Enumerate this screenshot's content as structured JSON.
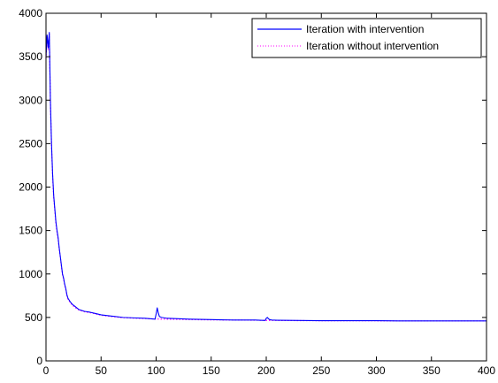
{
  "chart_data": {
    "type": "line",
    "title": "",
    "xlabel": "",
    "ylabel": "",
    "xlim": [
      0,
      400
    ],
    "ylim": [
      0,
      4000
    ],
    "xticks": [
      0,
      50,
      100,
      150,
      200,
      250,
      300,
      350,
      400
    ],
    "yticks": [
      0,
      500,
      1000,
      1500,
      2000,
      2500,
      3000,
      3500,
      4000
    ],
    "grid": false,
    "legend_position": "top-right",
    "series": [
      {
        "name": "Iteration with intervention",
        "color": "#0000ff",
        "style": "solid",
        "x": [
          0,
          1,
          2,
          3,
          4,
          5,
          6,
          7,
          8,
          9,
          10,
          11,
          12,
          13,
          14,
          15,
          16,
          17,
          18,
          19,
          20,
          22,
          24,
          26,
          28,
          30,
          35,
          40,
          45,
          50,
          60,
          70,
          80,
          90,
          99,
          100,
          101,
          102,
          103,
          105,
          110,
          120,
          130,
          150,
          170,
          190,
          199,
          200,
          201,
          202,
          203,
          205,
          210,
          230,
          250,
          280,
          300,
          320,
          350,
          380,
          400
        ],
        "y": [
          3500,
          3750,
          3600,
          3780,
          3000,
          2500,
          2150,
          1900,
          1750,
          1600,
          1500,
          1420,
          1300,
          1200,
          1100,
          1000,
          950,
          880,
          830,
          760,
          720,
          680,
          650,
          630,
          610,
          590,
          570,
          560,
          545,
          530,
          515,
          500,
          495,
          490,
          480,
          540,
          610,
          550,
          510,
          500,
          490,
          485,
          480,
          475,
          470,
          470,
          465,
          490,
          500,
          485,
          475,
          470,
          468,
          465,
          462,
          462,
          462,
          460,
          460,
          460,
          460
        ]
      },
      {
        "name": "Iteration without intervention",
        "color": "#ff00ff",
        "style": "dotted",
        "x": [
          0,
          1,
          2,
          3,
          4,
          5,
          6,
          7,
          8,
          9,
          10,
          11,
          12,
          13,
          14,
          15,
          16,
          17,
          18,
          19,
          20,
          22,
          24,
          26,
          28,
          30,
          35,
          40,
          45,
          50,
          60,
          70,
          80,
          90,
          100,
          110,
          120,
          130,
          150,
          170,
          190,
          200,
          210,
          230,
          250,
          280,
          300,
          320,
          350,
          380,
          400
        ],
        "y": [
          3480,
          3730,
          3580,
          3760,
          2980,
          2480,
          2130,
          1880,
          1730,
          1580,
          1480,
          1400,
          1290,
          1190,
          1090,
          990,
          940,
          870,
          820,
          750,
          710,
          670,
          640,
          620,
          600,
          585,
          565,
          555,
          540,
          525,
          510,
          497,
          492,
          487,
          482,
          480,
          478,
          475,
          472,
          470,
          468,
          466,
          465,
          463,
          462,
          461,
          461,
          460,
          460,
          460,
          460
        ]
      }
    ]
  }
}
